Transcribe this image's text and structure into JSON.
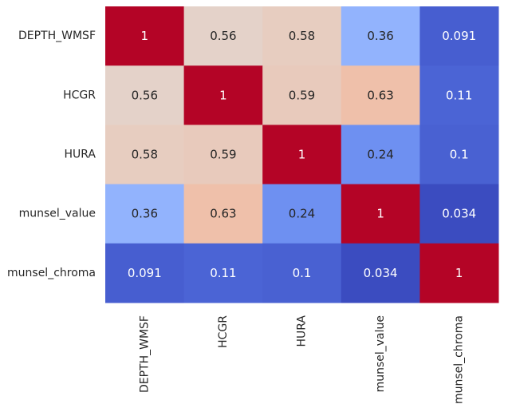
{
  "chart_data": {
    "type": "heatmap",
    "title": "",
    "xlabel": "",
    "ylabel": "",
    "colormap": "coolwarm",
    "color_range": [
      0.034,
      1
    ],
    "colorbar": false,
    "row_labels": [
      "DEPTH_WMSF",
      "HCGR",
      "HURA",
      "munsel_value",
      "munsel_chroma"
    ],
    "col_labels": [
      "DEPTH_WMSF",
      "HCGR",
      "HURA",
      "munsel_value",
      "munsel_chroma"
    ],
    "values": [
      [
        1,
        0.56,
        0.58,
        0.36,
        0.091
      ],
      [
        0.56,
        1,
        0.59,
        0.63,
        0.11
      ],
      [
        0.58,
        0.59,
        1,
        0.24,
        0.1
      ],
      [
        0.36,
        0.63,
        0.24,
        1,
        0.034
      ],
      [
        0.091,
        0.11,
        0.1,
        0.034,
        1
      ]
    ],
    "cell_labels": [
      [
        "1",
        "0.56",
        "0.58",
        "0.36",
        "0.091"
      ],
      [
        "0.56",
        "1",
        "0.59",
        "0.63",
        "0.11"
      ],
      [
        "0.58",
        "0.59",
        "1",
        "0.24",
        "0.1"
      ],
      [
        "0.36",
        "0.63",
        "0.24",
        "1",
        "0.034"
      ],
      [
        "0.091",
        "0.11",
        "0.1",
        "0.034",
        "1"
      ]
    ]
  }
}
